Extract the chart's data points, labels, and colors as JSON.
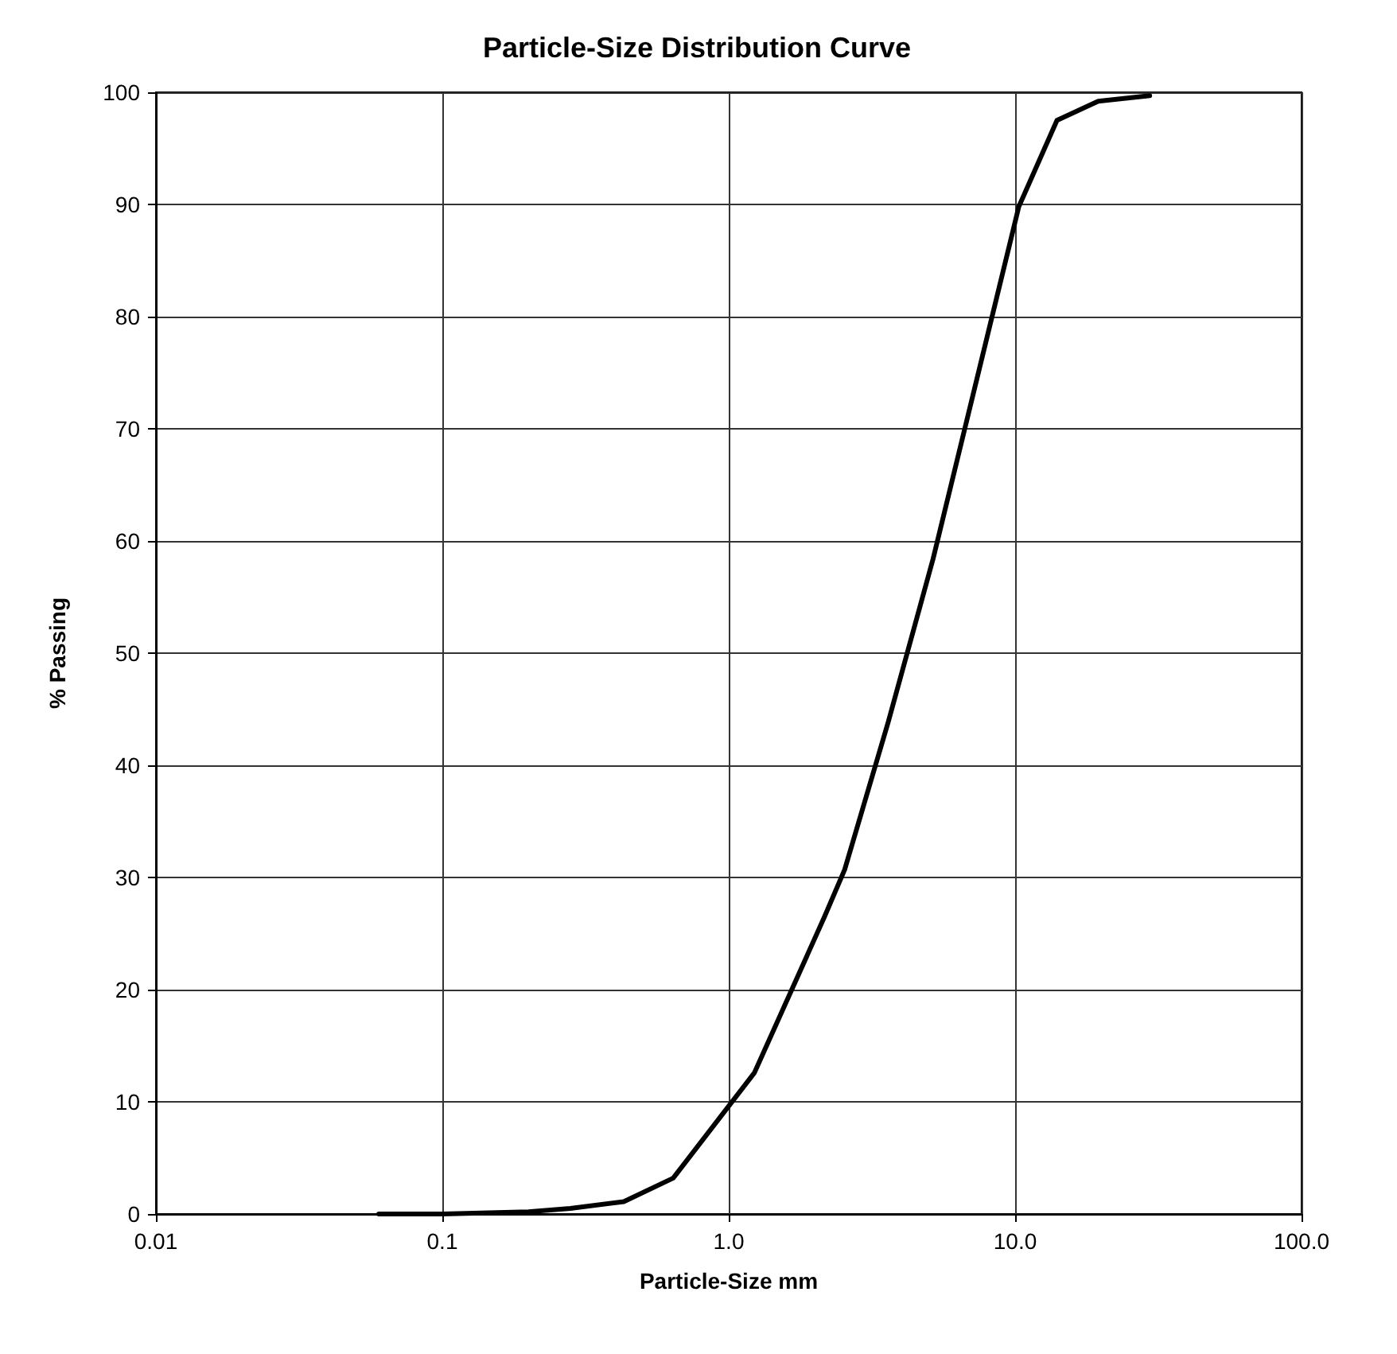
{
  "chart_data": {
    "type": "line",
    "title": "Particle-Size Distribution Curve",
    "xlabel": "Particle-Size mm",
    "ylabel": "% Passing",
    "x": [
      0.06,
      0.1,
      0.2,
      0.28,
      0.43,
      0.64,
      1.23,
      2.16,
      2.54,
      3.6,
      5.17,
      10.3,
      14.0,
      19.5,
      29.5
    ],
    "series": [
      {
        "color": "#000000",
        "values": [
          0,
          0,
          0.2,
          0.5,
          1.1,
          3.2,
          12.6,
          26.5,
          30.7,
          43.8,
          58.4,
          89.8,
          97.5,
          99.2,
          99.7
        ]
      }
    ],
    "log": "x",
    "xlim": [
      0.01,
      100
    ],
    "xticks": [
      {
        "value": 0.01,
        "label": "0.01"
      },
      0.1,
      {
        "value": 1,
        "label": "1.0"
      },
      {
        "value": 10,
        "label": "10.0"
      },
      {
        "value": 100,
        "label": "100.0"
      }
    ],
    "ylim": [
      0,
      100
    ],
    "yticks": [
      0,
      10,
      20,
      30,
      40,
      50,
      60,
      70,
      80,
      90,
      100
    ],
    "grid": true,
    "marker": "none",
    "line_style": "solid"
  }
}
